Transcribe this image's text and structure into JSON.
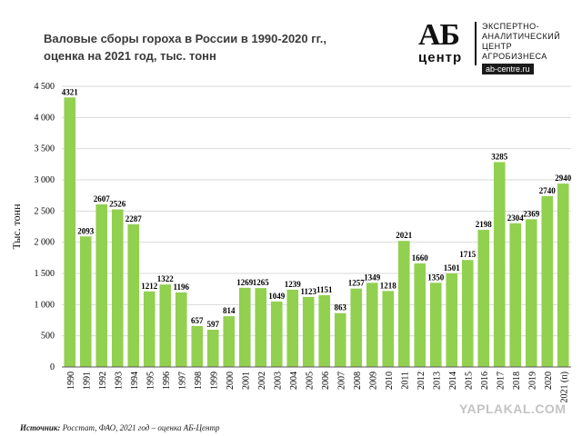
{
  "title_line1": "Валовые сборы гороха в России в 1990-2020 гг.,",
  "title_line2": "оценка на 2021 год, тыс. тонн",
  "logo": {
    "mark": "АБ",
    "center_word": "центр",
    "text": "ЭКСПЕРТНО-АНАЛИТИЧЕСКИЙ ЦЕНТР АГРОБИЗНЕСА",
    "url": "ab-centre.ru"
  },
  "watermark": "YAPLAKAL.COM",
  "source": {
    "label": "Источник:",
    "text": "Росстат, ФАО, 2021 год – оценка АБ-Центр"
  },
  "colors": {
    "bar": "#92d050",
    "grid": "#d9d9d9",
    "axis": "#595959",
    "text": "#000000"
  },
  "chart_data": {
    "type": "bar",
    "ylabel": "Тыс. тонн",
    "ylim": [
      0,
      4500
    ],
    "yticks": [
      0,
      500,
      1000,
      1500,
      2000,
      2500,
      3000,
      3500,
      4000,
      4500
    ],
    "ytick_labels": [
      "0",
      "500",
      "1 000",
      "1 500",
      "2 000",
      "2 500",
      "3 000",
      "3 500",
      "4 000",
      "4 500"
    ],
    "grid": true,
    "categories": [
      "1990",
      "1991",
      "1992",
      "1993",
      "1994",
      "1995",
      "1996",
      "1997",
      "1998",
      "1999",
      "2000",
      "2001",
      "2002",
      "2003",
      "2004",
      "2005",
      "2006",
      "2007",
      "2008",
      "2009",
      "2010",
      "2011",
      "2012",
      "2013",
      "2014",
      "2015",
      "2016",
      "2017",
      "2018",
      "2019",
      "2020",
      "2021 (п)"
    ],
    "values": [
      4321,
      2093,
      2607,
      2526,
      2287,
      1212,
      1322,
      1196,
      657,
      597,
      814,
      1269,
      1265,
      1049,
      1239,
      1123,
      1151,
      863,
      1257,
      1349,
      1218,
      2021,
      1660,
      1350,
      1501,
      1715,
      2198,
      3285,
      2304,
      2369,
      2740,
      2940
    ]
  }
}
